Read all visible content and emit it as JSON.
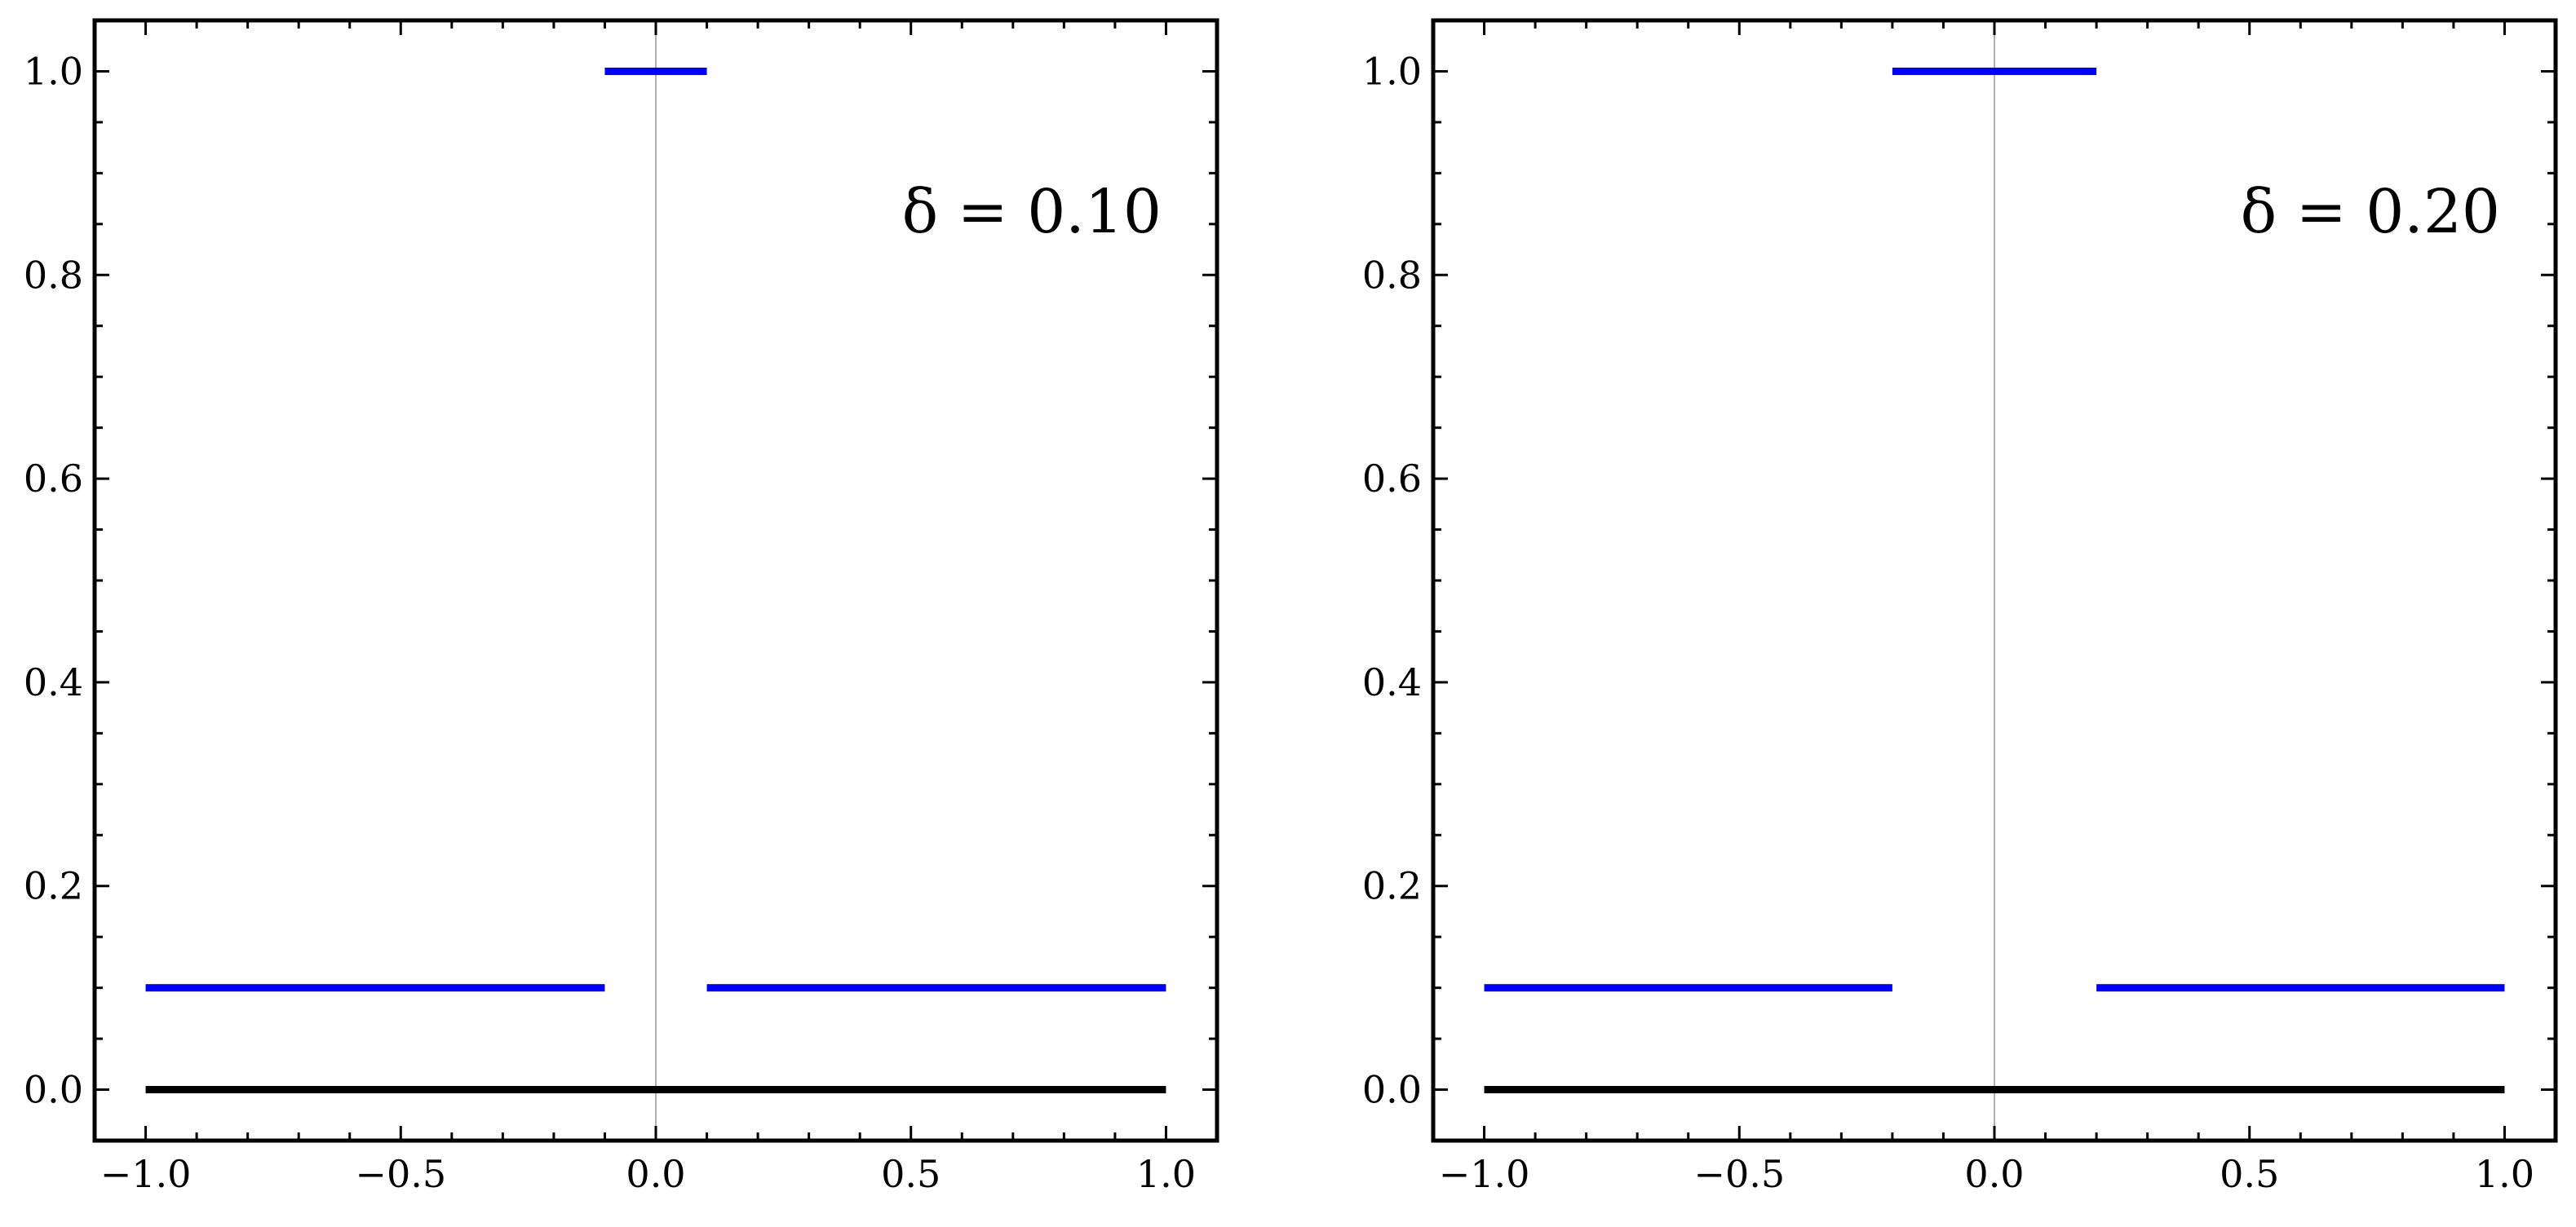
{
  "chart_data": [
    {
      "type": "line",
      "annotation": "δ = 0.10",
      "xlim": [
        -1.1,
        1.1
      ],
      "ylim": [
        -0.05,
        1.05
      ],
      "x_ticks": [
        -1.0,
        -0.5,
        0.0,
        0.5,
        1.0
      ],
      "x_tick_labels": [
        "−1.0",
        "−0.5",
        "0.0",
        "0.5",
        "1.0"
      ],
      "y_ticks": [
        0.0,
        0.2,
        0.4,
        0.6,
        0.8,
        1.0
      ],
      "y_tick_labels": [
        "0.0",
        "0.2",
        "0.4",
        "0.6",
        "0.8",
        "1.0"
      ],
      "grid": false,
      "vertical_reference_x": 0.0,
      "series": [
        {
          "color": "#0000ff",
          "segments": [
            {
              "x": [
                -1.0,
                -0.1
              ],
              "y": [
                0.1,
                0.1
              ]
            },
            {
              "x": [
                -0.1,
                0.1
              ],
              "y": [
                1.0,
                1.0
              ]
            },
            {
              "x": [
                0.1,
                1.0
              ],
              "y": [
                0.1,
                0.1
              ]
            }
          ]
        },
        {
          "color": "#000000",
          "segments": [
            {
              "x": [
                -1.0,
                1.0
              ],
              "y": [
                0.0,
                0.0
              ]
            }
          ]
        }
      ]
    },
    {
      "type": "line",
      "annotation": "δ = 0.20",
      "xlim": [
        -1.1,
        1.1
      ],
      "ylim": [
        -0.05,
        1.05
      ],
      "x_ticks": [
        -1.0,
        -0.5,
        0.0,
        0.5,
        1.0
      ],
      "x_tick_labels": [
        "−1.0",
        "−0.5",
        "0.0",
        "0.5",
        "1.0"
      ],
      "y_ticks": [
        0.0,
        0.2,
        0.4,
        0.6,
        0.8,
        1.0
      ],
      "y_tick_labels": [
        "0.0",
        "0.2",
        "0.4",
        "0.6",
        "0.8",
        "1.0"
      ],
      "grid": false,
      "vertical_reference_x": 0.0,
      "series": [
        {
          "color": "#0000ff",
          "segments": [
            {
              "x": [
                -1.0,
                -0.2
              ],
              "y": [
                0.1,
                0.1
              ]
            },
            {
              "x": [
                -0.2,
                0.2
              ],
              "y": [
                1.0,
                1.0
              ]
            },
            {
              "x": [
                0.2,
                1.0
              ],
              "y": [
                0.1,
                0.1
              ]
            }
          ]
        },
        {
          "color": "#000000",
          "segments": [
            {
              "x": [
                -1.0,
                1.0
              ],
              "y": [
                0.0,
                0.0
              ]
            }
          ]
        }
      ]
    }
  ]
}
